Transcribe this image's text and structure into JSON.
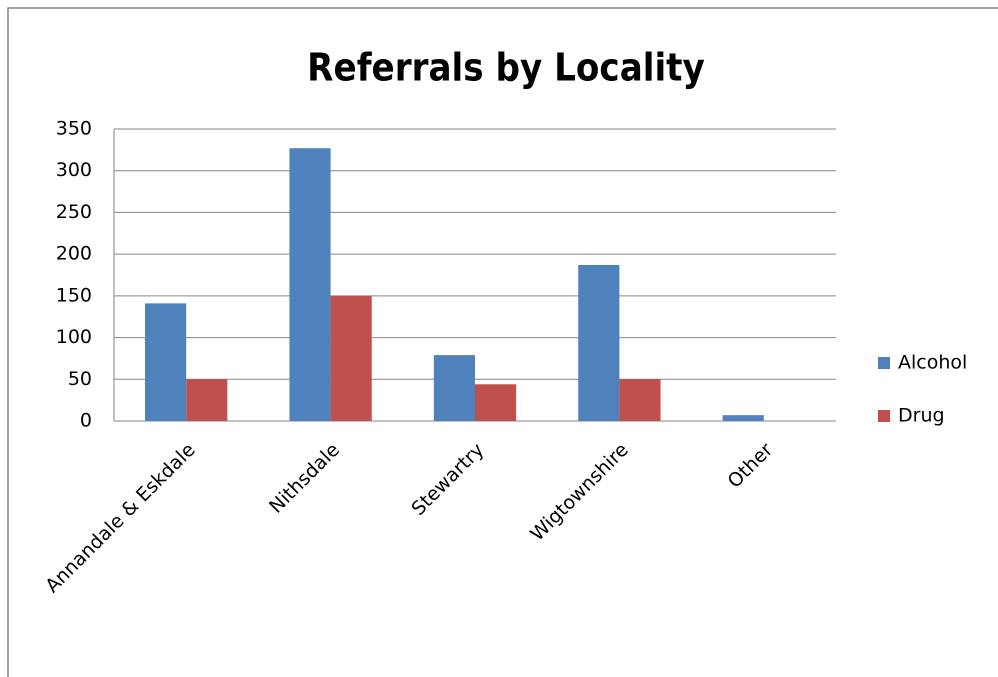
{
  "chart_data": {
    "type": "bar",
    "title": "Referrals by Locality",
    "categories": [
      "Annandale & Eskdale",
      "Nithsdale",
      "Stewartry",
      "Wigtownshire",
      "Other"
    ],
    "series": [
      {
        "name": "Alcohol",
        "color": "#4f81bd",
        "values": [
          141,
          327,
          79,
          187,
          7
        ]
      },
      {
        "name": "Drug",
        "color": "#c0504d",
        "values": [
          50,
          150,
          44,
          50,
          0
        ]
      }
    ],
    "ylim": [
      0,
      350
    ],
    "yticks": [
      0,
      50,
      100,
      150,
      200,
      250,
      300,
      350
    ],
    "grid": true,
    "legend": "right"
  }
}
